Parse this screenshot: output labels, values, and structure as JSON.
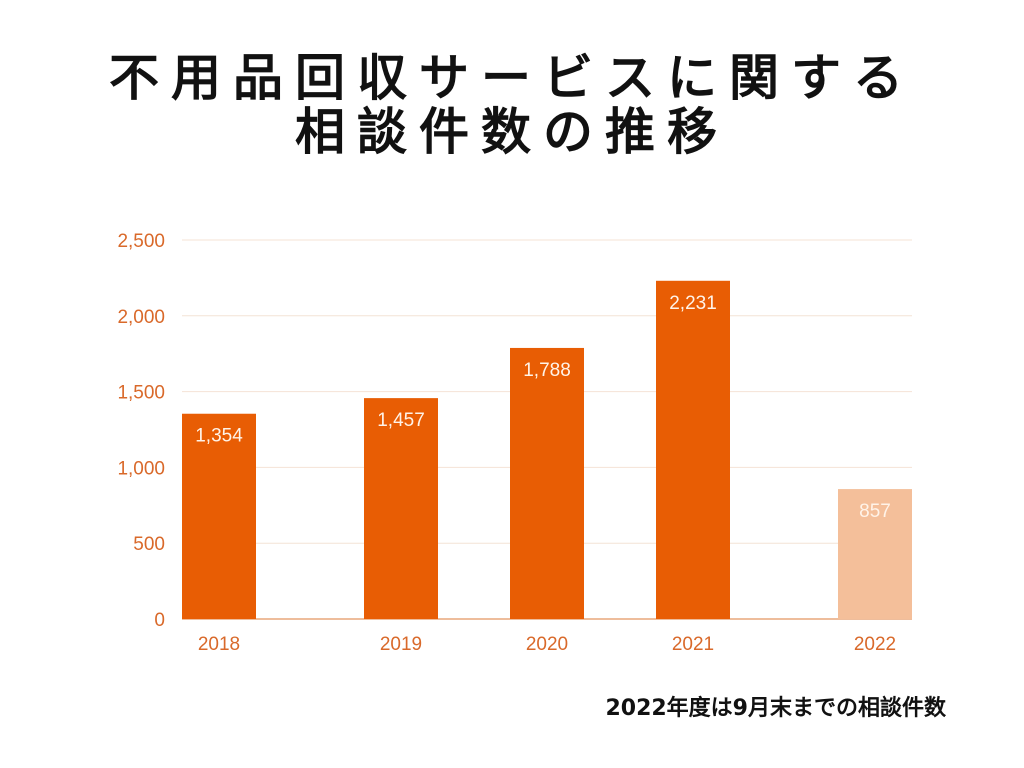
{
  "title": {
    "line1": "不用品回収サービスに関する",
    "line2": "相談件数の推移"
  },
  "footnote": "2022年度は9月末までの相談件数",
  "colors": {
    "bar": "#e85d04",
    "bar_partial": "#f4bf9a",
    "tick": "#d9692a",
    "grid": "#f4e3d6",
    "axis": "#e8a77c"
  },
  "chart_data": {
    "type": "bar",
    "title": "不用品回収サービスに関する相談件数の推移",
    "xlabel": "",
    "ylabel": "",
    "categories": [
      "2018",
      "2019",
      "2020",
      "2021",
      "2022"
    ],
    "values": [
      1354,
      1457,
      1788,
      2231,
      857
    ],
    "data_labels": [
      "1,354",
      "1,457",
      "1,788",
      "2,231",
      "857"
    ],
    "partial": [
      false,
      false,
      false,
      false,
      true
    ],
    "ylim": [
      0,
      2500
    ],
    "yticks": [
      0,
      500,
      1000,
      1500,
      2000,
      2500
    ],
    "ytick_labels": [
      "0",
      "500",
      "1,000",
      "1,500",
      "2,000",
      "2,500"
    ],
    "grid": true,
    "legend": "none",
    "annotation": "2022年度は9月末までの相談件数"
  }
}
